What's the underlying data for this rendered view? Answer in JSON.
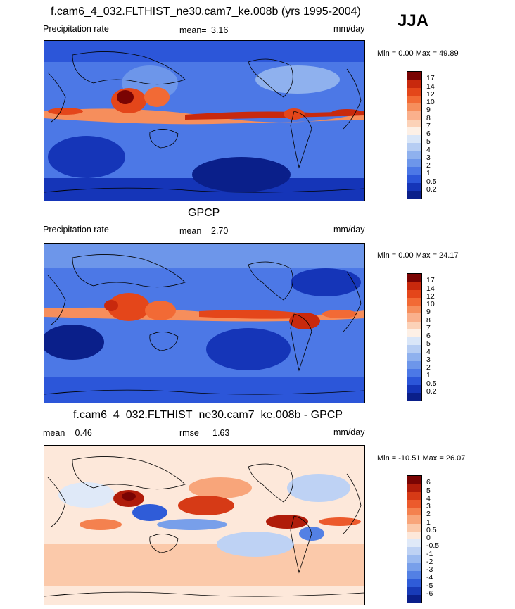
{
  "season": "JJA",
  "panels": [
    {
      "id": "model",
      "title": "f.cam6_4_032.FLTHIST_ne30.cam7_ke.008b (yrs 1995-2004)",
      "left_label": "Precipitation rate",
      "stat_label": "mean=",
      "stat_value": "3.16",
      "stat2_label": "",
      "stat2_value": "",
      "units": "mm/day",
      "minmax": "Min =   0.00 Max =  49.89",
      "levels": [
        "17",
        "14",
        "12",
        "10",
        "9",
        "8",
        "7",
        "6",
        "5",
        "4",
        "3",
        "2",
        "1",
        "0.5",
        "0.2"
      ],
      "colors": [
        "#7a0403",
        "#c8290d",
        "#e4461a",
        "#f26a35",
        "#f68e5c",
        "#fab08c",
        "#fcd2b8",
        "#fdf0e6",
        "#d9e6f8",
        "#b6cdf3",
        "#8fb1ee",
        "#6d96ea",
        "#4c78e6",
        "#2c56d9",
        "#1535b8",
        "#0a1f8a"
      ]
    },
    {
      "id": "obs",
      "title": "GPCP",
      "left_label": "Precipitation rate",
      "stat_label": "mean=",
      "stat_value": "2.70",
      "stat2_label": "",
      "stat2_value": "",
      "units": "mm/day",
      "minmax": "Min =   0.00 Max =  24.17",
      "levels": [
        "17",
        "14",
        "12",
        "10",
        "9",
        "8",
        "7",
        "6",
        "5",
        "4",
        "3",
        "2",
        "1",
        "0.5",
        "0.2"
      ],
      "colors": [
        "#7a0403",
        "#c8290d",
        "#e4461a",
        "#f26a35",
        "#f68e5c",
        "#fab08c",
        "#fcd2b8",
        "#fdf0e6",
        "#d9e6f8",
        "#b6cdf3",
        "#8fb1ee",
        "#6d96ea",
        "#4c78e6",
        "#2c56d9",
        "#1535b8",
        "#0a1f8a"
      ]
    },
    {
      "id": "diff",
      "title": "f.cam6_4_032.FLTHIST_ne30.cam7_ke.008b - GPCP",
      "left_label": "mean =   0.46",
      "stat_label": "rmse =",
      "stat_value": "1.63",
      "stat2_label": "",
      "stat2_value": "",
      "units": "mm/day",
      "minmax": "Min = -10.51 Max =  26.07",
      "levels": [
        "6",
        "5",
        "4",
        "3",
        "2",
        "1",
        "0.5",
        "0",
        "-0.5",
        "-1",
        "-2",
        "-3",
        "-4",
        "-5",
        "-6"
      ],
      "colors": [
        "#7a0403",
        "#b01c0a",
        "#d63a16",
        "#ec5a2c",
        "#f4814f",
        "#f8a57a",
        "#fbc9aa",
        "#fde8da",
        "#dfe9f8",
        "#bed2f4",
        "#9bbaf0",
        "#789fea",
        "#5380e4",
        "#2f5cd8",
        "#183bb8",
        "#0a1f8a"
      ]
    }
  ]
}
